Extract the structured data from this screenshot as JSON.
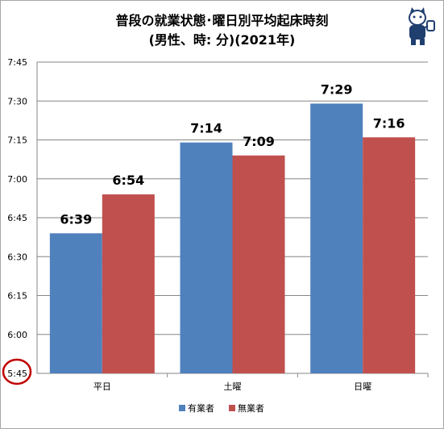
{
  "title_line1": "普段の就業状態･曜日別平均起床時刻",
  "title_line2": "(男性、時: 分)(2021年)",
  "mascot_icon": "cat-mascot-icon",
  "chart_data": {
    "type": "bar",
    "categories": [
      "平日",
      "土曜",
      "日曜"
    ],
    "series": [
      {
        "name": "有業者",
        "color": "#4f81bd",
        "values": [
          "6:39",
          "7:14",
          "7:29"
        ]
      },
      {
        "name": "無業者",
        "color": "#c0504d",
        "values": [
          "6:54",
          "7:09",
          "7:16"
        ]
      }
    ],
    "y_ticks": [
      "7:45",
      "7:30",
      "7:15",
      "7:00",
      "6:45",
      "6:30",
      "6:15",
      "6:00",
      "5:45"
    ],
    "ylim": [
      "5:45",
      "7:45"
    ],
    "grid": true,
    "legend_position": "bottom",
    "highlight": {
      "label": "5:45",
      "color": "#c00000"
    }
  }
}
